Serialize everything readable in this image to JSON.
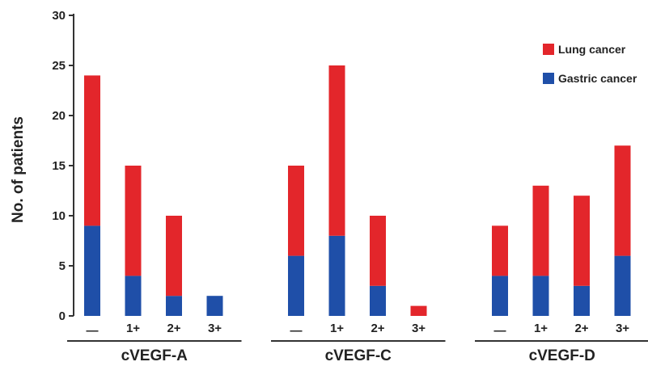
{
  "chart_data": {
    "type": "bar",
    "stacked": true,
    "ylabel": "No. of patients",
    "ylim": [
      0,
      30
    ],
    "yticks": [
      0,
      5,
      10,
      15,
      20,
      25,
      30
    ],
    "grid": false,
    "legend_position": "top-right",
    "groups": [
      {
        "name": "cVEGF-A",
        "categories": [
          "—",
          "1+",
          "2+",
          "3+"
        ]
      },
      {
        "name": "cVEGF-C",
        "categories": [
          "—",
          "1+",
          "2+",
          "3+"
        ]
      },
      {
        "name": "cVEGF-D",
        "categories": [
          "—",
          "1+",
          "2+",
          "3+"
        ]
      }
    ],
    "series": [
      {
        "name": "Gastric cancer",
        "color": "#1f4fa8",
        "values": [
          9,
          4,
          2,
          2,
          6,
          8,
          3,
          0,
          4,
          4,
          3,
          6
        ]
      },
      {
        "name": "Lung cancer",
        "color": "#e3262b",
        "values": [
          15,
          11,
          8,
          0,
          9,
          17,
          7,
          1,
          5,
          9,
          9,
          11
        ]
      }
    ],
    "legend_order": [
      "Lung cancer",
      "Gastric cancer"
    ]
  }
}
